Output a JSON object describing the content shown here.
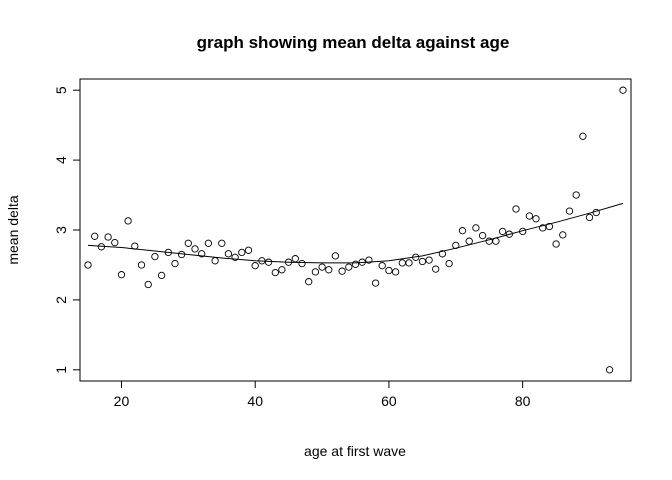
{
  "chart_data": {
    "type": "scatter",
    "title": "graph showing mean delta against age",
    "xlabel": "age at first wave",
    "ylabel": "mean delta",
    "xlim": [
      13.8,
      96.2
    ],
    "ylim": [
      0.84,
      5.16
    ],
    "xticks": [
      20,
      40,
      60,
      80
    ],
    "yticks": [
      1,
      2,
      3,
      4,
      5
    ],
    "grid": false,
    "legend": "none",
    "points": [
      [
        15,
        2.5
      ],
      [
        16,
        2.91
      ],
      [
        17,
        2.76
      ],
      [
        18,
        2.9
      ],
      [
        19,
        2.82
      ],
      [
        20,
        2.36
      ],
      [
        21,
        3.13
      ],
      [
        22,
        2.77
      ],
      [
        23,
        2.5
      ],
      [
        24,
        2.22
      ],
      [
        25,
        2.62
      ],
      [
        26,
        2.35
      ],
      [
        27,
        2.68
      ],
      [
        28,
        2.52
      ],
      [
        29,
        2.65
      ],
      [
        30,
        2.81
      ],
      [
        31,
        2.73
      ],
      [
        32,
        2.66
      ],
      [
        33,
        2.81
      ],
      [
        34,
        2.56
      ],
      [
        35,
        2.81
      ],
      [
        36,
        2.66
      ],
      [
        37,
        2.61
      ],
      [
        38,
        2.68
      ],
      [
        39,
        2.71
      ],
      [
        40,
        2.49
      ],
      [
        41,
        2.56
      ],
      [
        42,
        2.54
      ],
      [
        43,
        2.39
      ],
      [
        44,
        2.43
      ],
      [
        45,
        2.54
      ],
      [
        46,
        2.59
      ],
      [
        47,
        2.52
      ],
      [
        48,
        2.26
      ],
      [
        49,
        2.4
      ],
      [
        50,
        2.47
      ],
      [
        51,
        2.43
      ],
      [
        52,
        2.63
      ],
      [
        53,
        2.41
      ],
      [
        54,
        2.47
      ],
      [
        55,
        2.51
      ],
      [
        56,
        2.54
      ],
      [
        57,
        2.57
      ],
      [
        58,
        2.24
      ],
      [
        59,
        2.49
      ],
      [
        60,
        2.42
      ],
      [
        61,
        2.4
      ],
      [
        62,
        2.53
      ],
      [
        63,
        2.53
      ],
      [
        64,
        2.61
      ],
      [
        65,
        2.55
      ],
      [
        66,
        2.57
      ],
      [
        67,
        2.44
      ],
      [
        68,
        2.66
      ],
      [
        69,
        2.52
      ],
      [
        70,
        2.78
      ],
      [
        71,
        2.99
      ],
      [
        72,
        2.84
      ],
      [
        73,
        3.03
      ],
      [
        74,
        2.92
      ],
      [
        75,
        2.84
      ],
      [
        76,
        2.84
      ],
      [
        77,
        2.98
      ],
      [
        78,
        2.94
      ],
      [
        79,
        3.3
      ],
      [
        80,
        2.98
      ],
      [
        81,
        3.2
      ],
      [
        82,
        3.16
      ],
      [
        83,
        3.03
      ],
      [
        84,
        3.05
      ],
      [
        85,
        2.8
      ],
      [
        86,
        2.93
      ],
      [
        87,
        3.27
      ],
      [
        88,
        3.5
      ],
      [
        89,
        4.34
      ],
      [
        90,
        3.18
      ],
      [
        91,
        3.25
      ],
      [
        93,
        1.0
      ],
      [
        95,
        5.0
      ]
    ],
    "fit_line": {
      "x": [
        15,
        20,
        25,
        30,
        35,
        40,
        45,
        50,
        55,
        60,
        65,
        70,
        75,
        80,
        85,
        90,
        95
      ],
      "y": [
        2.78,
        2.75,
        2.7,
        2.65,
        2.6,
        2.56,
        2.54,
        2.53,
        2.53,
        2.56,
        2.63,
        2.74,
        2.86,
        2.99,
        3.11,
        3.24,
        3.38
      ]
    }
  }
}
